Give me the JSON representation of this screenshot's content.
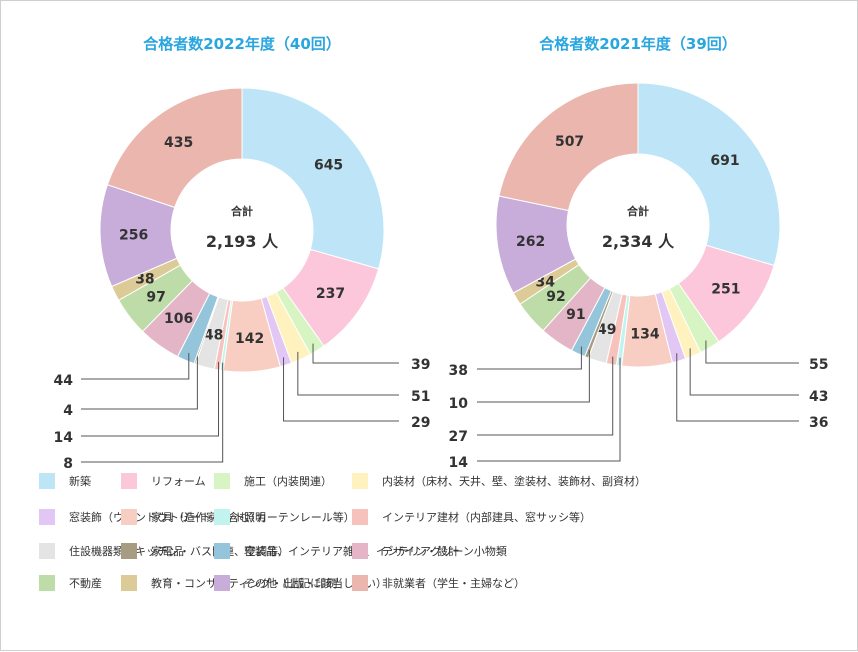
{
  "chart_data": [
    {
      "type": "donut",
      "title": "合格者数2022年度（40回）",
      "center_label": "合計",
      "center_total": "2,193 人",
      "categories": [
        "新築",
        "リフォーム",
        "施工（内装関連）",
        "内装材（床材、天井、壁、塗装材、装飾材、副資材）",
        "窓装飾（ウィンドウトリートメント、カーテンレール等）",
        "家具（造作家具含む）",
        "照明",
        "インテリア建材（内部建具、窓サッシ等）",
        "住設機器類（キッチン・バス関連、空調等）",
        "家電品",
        "寝装品、インテリア雑貨、インテリアグリーン小物類",
        "デザイン・設計",
        "不動産",
        "教育・コンサルティング・出版・印刷",
        "その他（上記に該当しない）",
        "非就業者（学生・主婦など）"
      ],
      "values": [
        645,
        237,
        39,
        51,
        29,
        142,
        8,
        14,
        48,
        4,
        44,
        106,
        97,
        38,
        256,
        435
      ]
    },
    {
      "type": "donut",
      "title": "合格者数2021年度（39回）",
      "center_label": "合計",
      "center_total": "2,334 人",
      "categories": [
        "新築",
        "リフォーム",
        "施工（内装関連）",
        "内装材（床材、天井、壁、塗装材、装飾材、副資材）",
        "窓装飾（ウィンドウトリートメント、カーテンレール等）",
        "家具（造作家具含む）",
        "照明",
        "インテリア建材（内部建具、窓サッシ等）",
        "住設機器類（キッチン・バス関連、空調等）",
        "家電品",
        "寝装品、インテリア雑貨、インテリアグリーン小物類",
        "デザイン・設計",
        "不動産",
        "教育・コンサルティング・出版・印刷",
        "その他（上記に該当しない）",
        "非就業者（学生・主婦など）"
      ],
      "values": [
        691,
        251,
        55,
        43,
        36,
        134,
        14,
        27,
        49,
        10,
        38,
        91,
        92,
        34,
        262,
        507
      ]
    }
  ],
  "colors": [
    "#bde5f7",
    "#fcc7da",
    "#d6f5c2",
    "#fff2bf",
    "#e2c6f4",
    "#f8cdc2",
    "#c2f4ef",
    "#f7c1bc",
    "#e4e4e4",
    "#a79c82",
    "#95c5da",
    "#e3b5c6",
    "#bedca8",
    "#dcca97",
    "#c8acda",
    "#eab6ad"
  ],
  "legend": {
    "rows": [
      [
        "新築",
        "リフォーム",
        "施工（内装関連）",
        "内装材（床材、天井、壁、塗装材、装飾材、副資材）"
      ],
      [
        "窓装飾（ウィンドウトリートメント、カーテンレール等）",
        "家具（造作家具含む）",
        "照明",
        "インテリア建材（内部建具、窓サッシ等）"
      ],
      [
        "住設機器類（キッチン・バス関連、空調等）",
        "家電品",
        "寝装品、インテリア雑貨、インテリアグリーン小物類",
        "デザイン・設計"
      ],
      [
        "不動産",
        "教育・コンサルティング・出版・印刷",
        "その他（上記に該当しない）",
        "非就業者（学生・主婦など）"
      ]
    ]
  }
}
